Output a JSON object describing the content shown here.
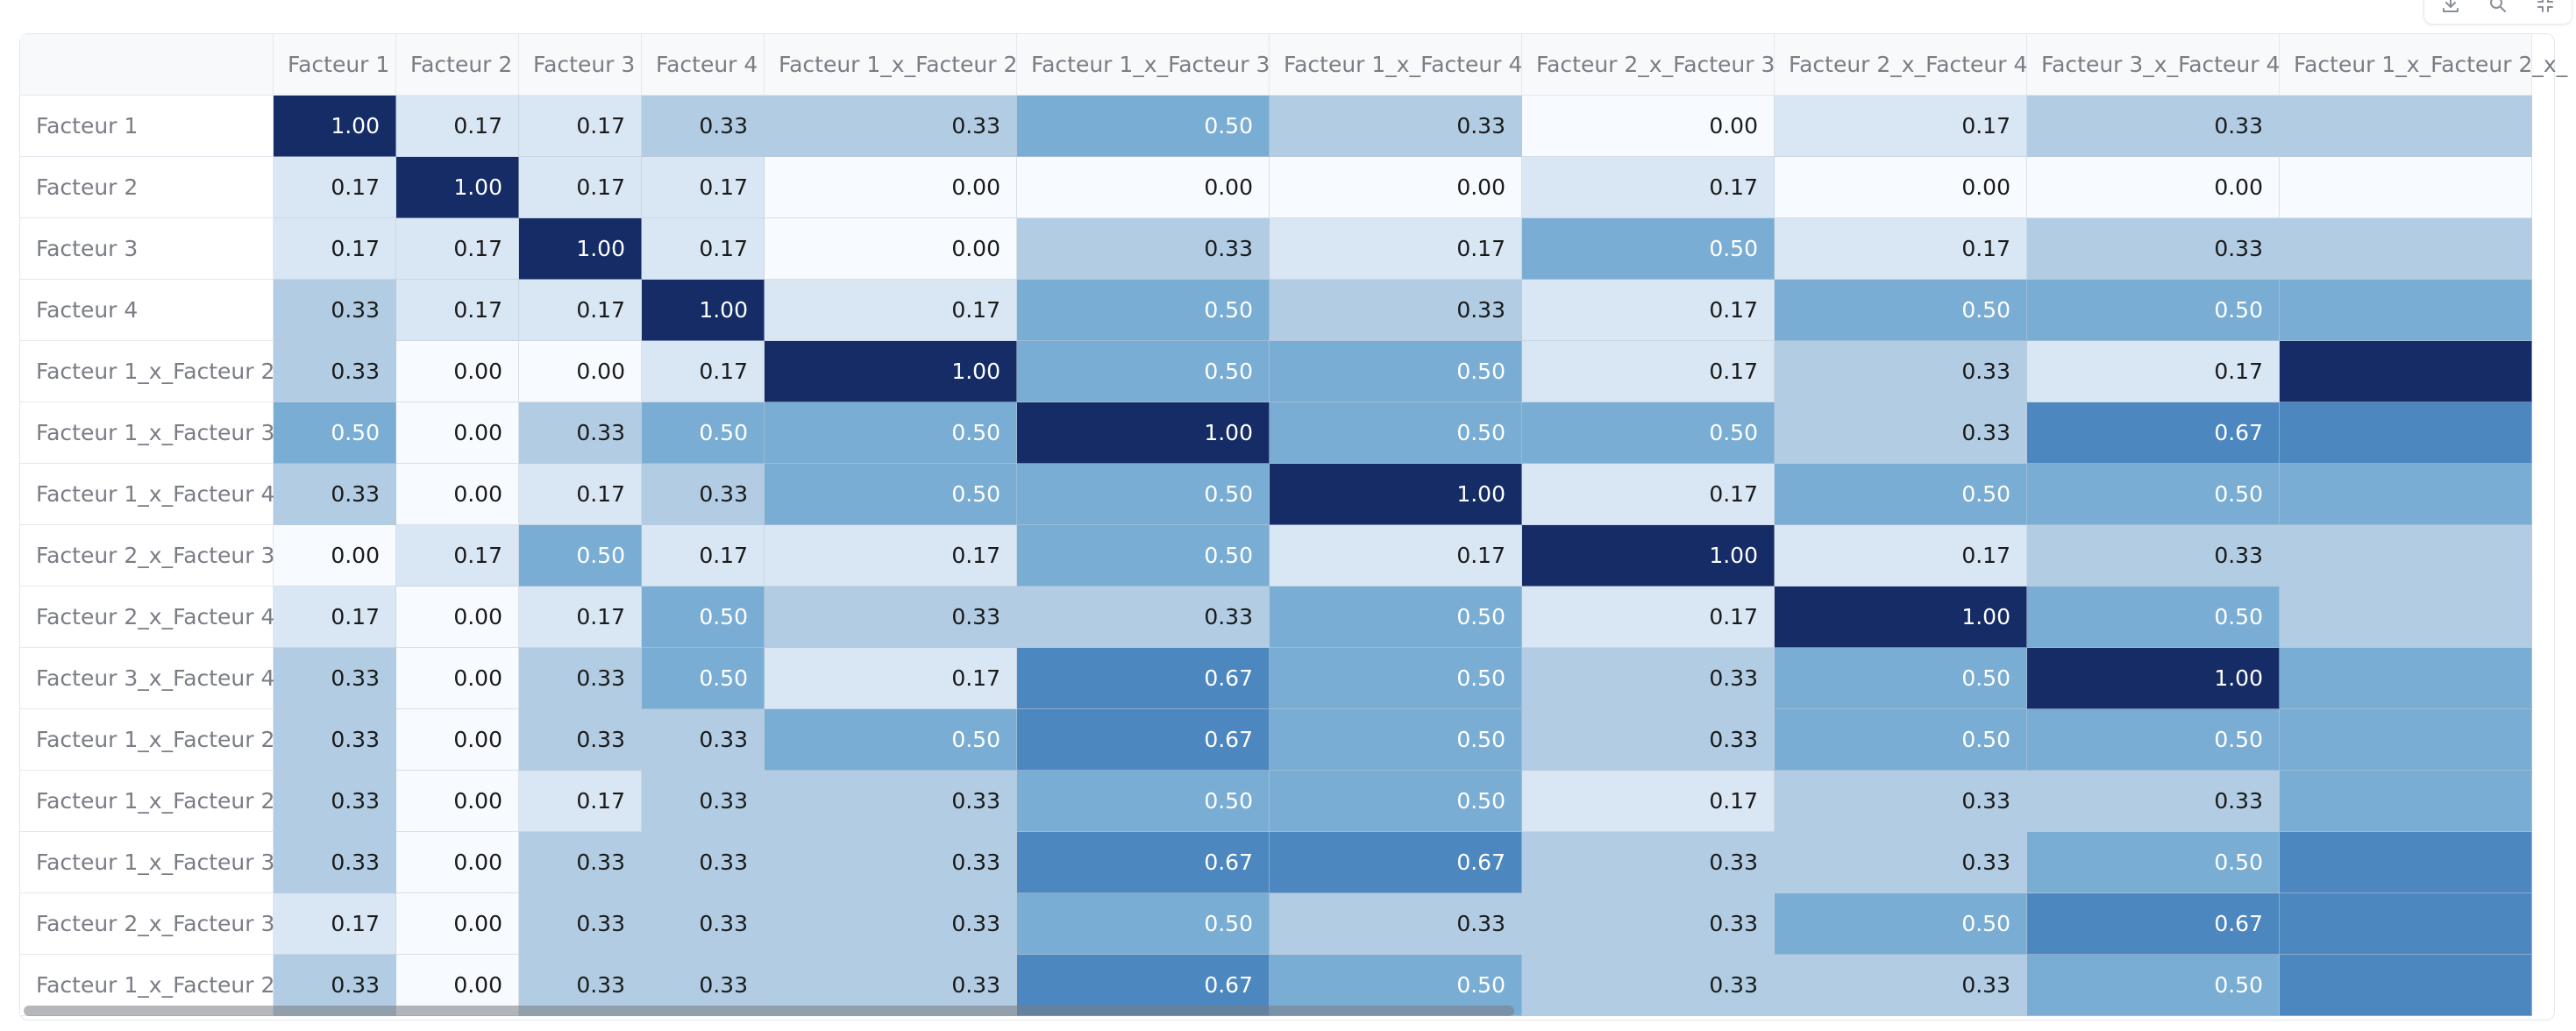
{
  "toolbar": {
    "buttons": [
      {
        "name": "download-icon"
      },
      {
        "name": "search-icon"
      },
      {
        "name": "fullscreen-icon"
      }
    ]
  },
  "table": {
    "columns": [
      "Facteur 1",
      "Facteur 2",
      "Facteur 3",
      "Facteur 4",
      "Facteur 1_x_Facteur 2",
      "Facteur 1_x_Facteur 3",
      "Facteur 1_x_Facteur 4",
      "Facteur 2_x_Facteur 3",
      "Facteur 2_x_Facteur 4",
      "Facteur 3_x_Facteur 4",
      "Facteur 1_x_Facteur 2_x_"
    ],
    "rows": [
      {
        "label": "Facteur 1",
        "values": [
          "1.00",
          "0.17",
          "0.17",
          "0.33",
          "0.33",
          "0.50",
          "0.33",
          "0.00",
          "0.17",
          "0.33",
          ""
        ]
      },
      {
        "label": "Facteur 2",
        "values": [
          "0.17",
          "1.00",
          "0.17",
          "0.17",
          "0.00",
          "0.00",
          "0.00",
          "0.17",
          "0.00",
          "0.00",
          ""
        ]
      },
      {
        "label": "Facteur 3",
        "values": [
          "0.17",
          "0.17",
          "1.00",
          "0.17",
          "0.00",
          "0.33",
          "0.17",
          "0.50",
          "0.17",
          "0.33",
          ""
        ]
      },
      {
        "label": "Facteur 4",
        "values": [
          "0.33",
          "0.17",
          "0.17",
          "1.00",
          "0.17",
          "0.50",
          "0.33",
          "0.17",
          "0.50",
          "0.50",
          ""
        ]
      },
      {
        "label": "Facteur 1_x_Facteur 2",
        "values": [
          "0.33",
          "0.00",
          "0.00",
          "0.17",
          "1.00",
          "0.50",
          "0.50",
          "0.17",
          "0.33",
          "0.17",
          ""
        ]
      },
      {
        "label": "Facteur 1_x_Facteur 3",
        "values": [
          "0.50",
          "0.00",
          "0.33",
          "0.50",
          "0.50",
          "1.00",
          "0.50",
          "0.50",
          "0.33",
          "0.67",
          ""
        ]
      },
      {
        "label": "Facteur 1_x_Facteur 4",
        "values": [
          "0.33",
          "0.00",
          "0.17",
          "0.33",
          "0.50",
          "0.50",
          "1.00",
          "0.17",
          "0.50",
          "0.50",
          ""
        ]
      },
      {
        "label": "Facteur 2_x_Facteur 3",
        "values": [
          "0.00",
          "0.17",
          "0.50",
          "0.17",
          "0.17",
          "0.50",
          "0.17",
          "1.00",
          "0.17",
          "0.33",
          ""
        ]
      },
      {
        "label": "Facteur 2_x_Facteur 4",
        "values": [
          "0.17",
          "0.00",
          "0.17",
          "0.50",
          "0.33",
          "0.33",
          "0.50",
          "0.17",
          "1.00",
          "0.50",
          ""
        ]
      },
      {
        "label": "Facteur 3_x_Facteur 4",
        "values": [
          "0.33",
          "0.00",
          "0.33",
          "0.50",
          "0.17",
          "0.67",
          "0.50",
          "0.33",
          "0.50",
          "1.00",
          ""
        ]
      },
      {
        "label": "Facteur 1_x_Facteur 2_",
        "values": [
          "0.33",
          "0.00",
          "0.33",
          "0.33",
          "0.50",
          "0.67",
          "0.50",
          "0.33",
          "0.50",
          "0.50",
          ""
        ]
      },
      {
        "label": "Facteur 1_x_Facteur 2_",
        "values": [
          "0.33",
          "0.00",
          "0.17",
          "0.33",
          "0.33",
          "0.50",
          "0.50",
          "0.17",
          "0.33",
          "0.33",
          ""
        ]
      },
      {
        "label": "Facteur 1_x_Facteur 3_",
        "values": [
          "0.33",
          "0.00",
          "0.33",
          "0.33",
          "0.33",
          "0.67",
          "0.67",
          "0.33",
          "0.33",
          "0.50",
          ""
        ]
      },
      {
        "label": "Facteur 2_x_Facteur 3_",
        "values": [
          "0.17",
          "0.00",
          "0.33",
          "0.33",
          "0.33",
          "0.50",
          "0.33",
          "0.33",
          "0.50",
          "0.67",
          ""
        ]
      },
      {
        "label": "Facteur 1_x_Facteur 2_",
        "values": [
          "0.33",
          "0.00",
          "0.33",
          "0.33",
          "0.33",
          "0.67",
          "0.50",
          "0.33",
          "0.33",
          "0.50",
          ""
        ]
      }
    ],
    "cut_off_column_levels": [
      "",
      "",
      "",
      "",
      "1.00",
      "",
      "",
      "",
      "",
      "",
      "",
      "",
      "",
      "",
      ""
    ]
  },
  "colors": {
    "scale": {
      "0.00": "#f7fbff",
      "0.17": "#d9e6f4",
      "0.33": "#b2cde3",
      "0.50": "#7aadd3",
      "0.67": "#4d87bf",
      "1.00": "#152c66"
    },
    "dark_text": "#1a1a1a",
    "light_text": "#ffffff"
  }
}
